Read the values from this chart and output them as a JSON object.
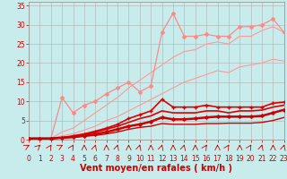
{
  "background_color": "#c8ecec",
  "grid_color": "#b0b0b0",
  "xlabel": "Vent moyen/en rafales ( km/h )",
  "xlabel_color": "#cc0000",
  "xlabel_fontsize": 7,
  "ylabel_ticks": [
    0,
    5,
    10,
    15,
    20,
    25,
    30,
    35
  ],
  "xticks": [
    0,
    1,
    2,
    3,
    4,
    5,
    6,
    7,
    8,
    9,
    10,
    11,
    12,
    13,
    14,
    15,
    16,
    17,
    18,
    19,
    20,
    21,
    22,
    23
  ],
  "xlim": [
    0,
    23
  ],
  "ylim": [
    0,
    36
  ],
  "tick_color": "#cc0000",
  "tick_fontsize": 5.5,
  "series": [
    {
      "x": [
        0,
        1,
        2,
        3,
        4,
        5,
        6,
        7,
        8,
        9,
        10,
        11,
        12,
        13,
        14,
        15,
        16,
        17,
        18,
        19,
        20,
        21,
        22,
        23
      ],
      "y": [
        0.3,
        0.3,
        0.3,
        11,
        7,
        9,
        10,
        12,
        13.5,
        15,
        12.5,
        14,
        28,
        33,
        27,
        27,
        27.5,
        27,
        27,
        29.5,
        29.5,
        30,
        31.5,
        28
      ],
      "color": "#ff8888",
      "linewidth": 0.9,
      "marker": "D",
      "markersize": 2.0,
      "zorder": 3
    },
    {
      "x": [
        0,
        1,
        2,
        3,
        4,
        5,
        6,
        7,
        8,
        9,
        10,
        11,
        12,
        13,
        14,
        15,
        16,
        17,
        18,
        19,
        20,
        21,
        22,
        23
      ],
      "y": [
        0.3,
        0.3,
        0.3,
        2,
        3,
        5,
        7,
        9,
        11,
        13.5,
        15.5,
        17.5,
        19.5,
        21.5,
        23,
        23.5,
        25,
        25.5,
        25,
        27,
        27,
        28.5,
        29.5,
        28
      ],
      "color": "#ff9999",
      "linewidth": 0.8,
      "marker": null,
      "markersize": 0,
      "zorder": 2
    },
    {
      "x": [
        0,
        1,
        2,
        3,
        4,
        5,
        6,
        7,
        8,
        9,
        10,
        11,
        12,
        13,
        14,
        15,
        16,
        17,
        18,
        19,
        20,
        21,
        22,
        23
      ],
      "y": [
        0.3,
        0.3,
        0.3,
        1,
        1.5,
        2.5,
        3.5,
        5,
        6,
        7.5,
        9,
        10.5,
        12,
        13.5,
        15,
        16,
        17,
        18,
        17.5,
        19,
        19.5,
        20,
        21,
        20.5
      ],
      "color": "#ff9999",
      "linewidth": 0.8,
      "marker": null,
      "markersize": 0,
      "zorder": 2
    },
    {
      "x": [
        0,
        1,
        2,
        3,
        4,
        5,
        6,
        7,
        8,
        9,
        10,
        11,
        12,
        13,
        14,
        15,
        16,
        17,
        18,
        19,
        20,
        21,
        22,
        23
      ],
      "y": [
        0.3,
        0.3,
        0.3,
        0.5,
        1.0,
        1.5,
        2.2,
        3.0,
        4.0,
        5.5,
        6.5,
        7.5,
        10.5,
        8.5,
        8.5,
        8.5,
        9.0,
        8.5,
        8.5,
        8.5,
        8.5,
        8.5,
        9.5,
        9.8
      ],
      "color": "#dd0000",
      "linewidth": 1.2,
      "marker": "+",
      "markersize": 3.0,
      "zorder": 5
    },
    {
      "x": [
        0,
        1,
        2,
        3,
        4,
        5,
        6,
        7,
        8,
        9,
        10,
        11,
        12,
        13,
        14,
        15,
        16,
        17,
        18,
        19,
        20,
        21,
        22,
        23
      ],
      "y": [
        0.3,
        0.3,
        0.3,
        0.5,
        0.8,
        1.3,
        1.9,
        2.7,
        3.5,
        4.5,
        5.5,
        6.2,
        7.5,
        7.0,
        7.0,
        7.0,
        7.5,
        7.5,
        7.0,
        7.5,
        7.5,
        7.7,
        8.5,
        9.0
      ],
      "color": "#dd0000",
      "linewidth": 1.2,
      "marker": null,
      "markersize": 0,
      "zorder": 4
    },
    {
      "x": [
        0,
        1,
        2,
        3,
        4,
        5,
        6,
        7,
        8,
        9,
        10,
        11,
        12,
        13,
        14,
        15,
        16,
        17,
        18,
        19,
        20,
        21,
        22,
        23
      ],
      "y": [
        0.3,
        0.3,
        0.3,
        0.5,
        0.7,
        1.0,
        1.4,
        2.0,
        2.7,
        3.5,
        4.0,
        4.7,
        5.8,
        5.3,
        5.3,
        5.5,
        5.8,
        6.0,
        6.0,
        6.0,
        6.0,
        6.2,
        7.0,
        7.8
      ],
      "color": "#cc0000",
      "linewidth": 1.8,
      "marker": "D",
      "markersize": 1.8,
      "zorder": 6
    },
    {
      "x": [
        0,
        1,
        2,
        3,
        4,
        5,
        6,
        7,
        8,
        9,
        10,
        11,
        12,
        13,
        14,
        15,
        16,
        17,
        18,
        19,
        20,
        21,
        22,
        23
      ],
      "y": [
        0.3,
        0.3,
        0.3,
        0.4,
        0.6,
        0.9,
        1.1,
        1.5,
        2.0,
        2.7,
        3.2,
        3.5,
        4.2,
        4.0,
        4.0,
        4.0,
        4.2,
        4.2,
        4.3,
        4.3,
        4.3,
        4.5,
        5.0,
        5.8
      ],
      "color": "#cc0000",
      "linewidth": 1.0,
      "marker": null,
      "markersize": 0,
      "zorder": 3
    }
  ]
}
